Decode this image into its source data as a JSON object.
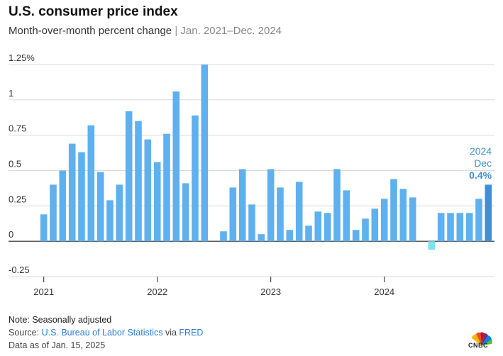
{
  "header": {
    "title": "U.S. consumer price index",
    "subtitle_main": "Month-over-month percent change",
    "subtitle_sep": "|",
    "subtitle_range": "Jan. 2021–Dec. 2024"
  },
  "chart_data": {
    "type": "bar",
    "title": "U.S. consumer price index",
    "subtitle": "Month-over-month percent change | Jan. 2021–Dec. 2024",
    "xlabel": "",
    "ylabel": "",
    "ylim": [
      -0.25,
      1.25
    ],
    "yticks": [
      {
        "value": 1.25,
        "label": "1.25%"
      },
      {
        "value": 1,
        "label": "1"
      },
      {
        "value": 0.75,
        "label": "0.75"
      },
      {
        "value": 0.5,
        "label": "0.5"
      },
      {
        "value": 0.25,
        "label": "0.25"
      },
      {
        "value": 0,
        "label": "0"
      },
      {
        "value": -0.25,
        "label": "-0.25"
      }
    ],
    "xticks": [
      {
        "index": 0,
        "label": "2021"
      },
      {
        "index": 12,
        "label": "2022"
      },
      {
        "index": 24,
        "label": "2023"
      },
      {
        "index": 36,
        "label": "2024"
      }
    ],
    "grid": true,
    "categories": [
      "2021-01",
      "2021-02",
      "2021-03",
      "2021-04",
      "2021-05",
      "2021-06",
      "2021-07",
      "2021-08",
      "2021-09",
      "2021-10",
      "2021-11",
      "2021-12",
      "2022-01",
      "2022-02",
      "2022-03",
      "2022-04",
      "2022-05",
      "2022-06",
      "2022-07",
      "2022-08",
      "2022-09",
      "2022-10",
      "2022-11",
      "2022-12",
      "2023-01",
      "2023-02",
      "2023-03",
      "2023-04",
      "2023-05",
      "2023-06",
      "2023-07",
      "2023-08",
      "2023-09",
      "2023-10",
      "2023-11",
      "2023-12",
      "2024-01",
      "2024-02",
      "2024-03",
      "2024-04",
      "2024-05",
      "2024-06",
      "2024-07",
      "2024-08",
      "2024-09",
      "2024-10",
      "2024-11",
      "2024-12"
    ],
    "values": [
      0.19,
      0.4,
      0.5,
      0.69,
      0.63,
      0.82,
      0.49,
      0.29,
      0.4,
      0.92,
      0.85,
      0.72,
      0.56,
      0.76,
      1.06,
      0.41,
      0.89,
      1.25,
      0.0,
      0.07,
      0.38,
      0.51,
      0.26,
      0.05,
      0.51,
      0.38,
      0.08,
      0.42,
      0.11,
      0.21,
      0.2,
      0.51,
      0.36,
      0.08,
      0.16,
      0.23,
      0.3,
      0.44,
      0.37,
      0.31,
      0.0,
      -0.06,
      0.2,
      0.2,
      0.2,
      0.2,
      0.3,
      0.4
    ],
    "colors": {
      "bar": "#5fb0ee",
      "negative": "#7de3f3",
      "highlight": "#3f8fd6",
      "grid": "#d9d9d9",
      "axis": "#222222"
    },
    "callout": {
      "year": "2024",
      "month": "Dec",
      "value": "0.4%"
    }
  },
  "footer": {
    "note": "Note: Seasonally adjusted",
    "source_prefix": "Source: ",
    "source_bls": "U.S. Bureau of Labor Statistics",
    "source_via": " via ",
    "source_fred": "FRED",
    "as_of": "Data as of Jan. 15, 2025",
    "logo": "CNBC"
  }
}
